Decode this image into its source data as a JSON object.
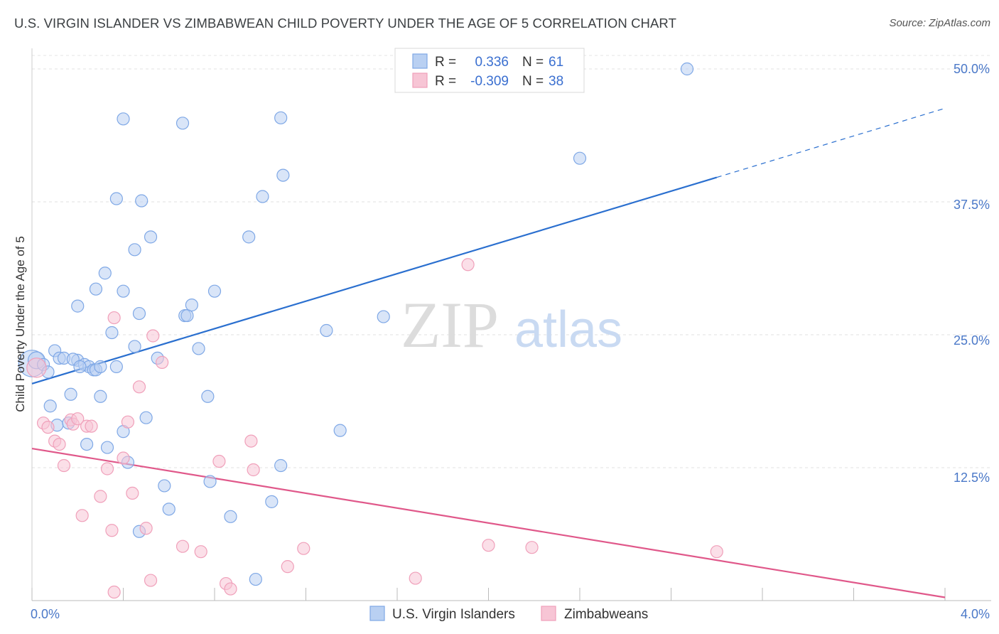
{
  "header": {
    "title": "U.S. VIRGIN ISLANDER VS ZIMBABWEAN CHILD POVERTY UNDER THE AGE OF 5 CORRELATION CHART",
    "source": "Source: ZipAtlas.com"
  },
  "chart_data": {
    "type": "scatter",
    "ylabel": "Child Poverty Under the Age of 5",
    "x_tick_labels": [
      "0.0%",
      "4.0%"
    ],
    "y_tick_labels": [
      "12.5%",
      "25.0%",
      "37.5%",
      "50.0%"
    ],
    "xlim": [
      0,
      4
    ],
    "ylim": [
      0,
      50
    ],
    "grid": true,
    "watermark": {
      "zip": "ZIP",
      "atlas": "atlas"
    },
    "legend": {
      "placement": "top-center",
      "rows": [
        {
          "r_label": "R = ",
          "r_value": "0.336",
          "n_label": "N = ",
          "n_value": "61"
        },
        {
          "r_label": "R = ",
          "r_value": "-0.309",
          "n_label": "N = ",
          "n_value": "38"
        }
      ]
    },
    "series": [
      {
        "name": "U.S. Virgin Islanders",
        "color": "#7fa8e6",
        "fill": "#b9d0f2",
        "line_color": "#2a6fcf",
        "trend": {
          "x0": 0.0,
          "y0": 20.4,
          "x1": 3.0,
          "y1": 39.8,
          "x_dash_end": 4.0,
          "y_dash_end": 46.3
        },
        "points": [
          [
            0.0,
            22.3,
            2.2
          ],
          [
            0.02,
            22.6,
            1.4
          ],
          [
            0.05,
            22.2,
            1
          ],
          [
            0.07,
            21.5,
            1
          ],
          [
            0.1,
            23.5,
            1
          ],
          [
            0.12,
            22.8,
            1
          ],
          [
            0.14,
            22.8,
            1
          ],
          [
            0.2,
            22.6,
            1
          ],
          [
            0.23,
            22.2,
            1
          ],
          [
            0.25,
            22.0,
            1
          ],
          [
            0.27,
            21.7,
            1
          ],
          [
            0.28,
            21.7,
            1
          ],
          [
            0.18,
            22.7,
            1
          ],
          [
            0.3,
            22.0,
            1
          ],
          [
            0.37,
            22.0,
            1
          ],
          [
            0.08,
            18.3,
            1
          ],
          [
            0.11,
            16.5,
            1
          ],
          [
            0.16,
            16.7,
            1
          ],
          [
            0.17,
            19.4,
            1
          ],
          [
            0.21,
            22.0,
            1
          ],
          [
            0.24,
            14.7,
            1
          ],
          [
            0.3,
            19.2,
            1
          ],
          [
            0.33,
            14.4,
            1
          ],
          [
            0.4,
            15.9,
            1
          ],
          [
            0.42,
            13.0,
            1
          ],
          [
            0.45,
            23.9,
            1
          ],
          [
            0.5,
            17.2,
            1
          ],
          [
            0.55,
            22.8,
            1
          ],
          [
            0.58,
            10.8,
            1
          ],
          [
            0.6,
            8.6,
            1
          ],
          [
            0.2,
            27.7,
            1
          ],
          [
            0.28,
            29.3,
            1
          ],
          [
            0.32,
            30.8,
            1
          ],
          [
            0.35,
            25.2,
            1
          ],
          [
            0.37,
            37.8,
            1
          ],
          [
            0.4,
            29.1,
            1
          ],
          [
            0.45,
            33.0,
            1
          ],
          [
            0.47,
            27.0,
            1
          ],
          [
            0.48,
            37.6,
            1
          ],
          [
            0.52,
            34.2,
            1
          ],
          [
            0.67,
            26.8,
            1
          ],
          [
            0.68,
            26.8,
            1
          ],
          [
            0.7,
            27.8,
            1
          ],
          [
            0.73,
            23.7,
            1
          ],
          [
            0.77,
            19.2,
            1
          ],
          [
            0.8,
            29.1,
            1
          ],
          [
            0.78,
            11.2,
            1
          ],
          [
            0.87,
            7.9,
            1
          ],
          [
            0.4,
            45.3,
            1
          ],
          [
            0.66,
            44.9,
            1
          ],
          [
            0.95,
            34.2,
            1
          ],
          [
            1.01,
            38.0,
            1
          ],
          [
            1.09,
            45.4,
            1
          ],
          [
            1.1,
            40.0,
            1
          ],
          [
            1.05,
            9.3,
            1
          ],
          [
            1.09,
            12.7,
            1
          ],
          [
            0.98,
            2.0,
            1
          ],
          [
            0.47,
            6.5,
            1
          ],
          [
            1.29,
            25.4,
            1
          ],
          [
            1.35,
            16.0,
            1
          ],
          [
            1.54,
            26.7,
            1
          ],
          [
            2.4,
            41.6,
            1
          ],
          [
            2.87,
            50.0,
            1
          ]
        ]
      },
      {
        "name": "Zimbabweans",
        "color": "#f0a0ba",
        "fill": "#f7c5d5",
        "line_color": "#e0588a",
        "trend": {
          "x0": 0.0,
          "y0": 14.3,
          "x1": 4.0,
          "y1": 0.3
        },
        "points": [
          [
            0.02,
            21.9,
            1.6
          ],
          [
            0.05,
            16.7,
            1
          ],
          [
            0.07,
            16.3,
            1
          ],
          [
            0.1,
            15.0,
            1
          ],
          [
            0.12,
            14.7,
            1
          ],
          [
            0.14,
            12.7,
            1
          ],
          [
            0.17,
            17.0,
            1
          ],
          [
            0.18,
            16.6,
            1
          ],
          [
            0.2,
            17.1,
            1
          ],
          [
            0.24,
            16.4,
            1
          ],
          [
            0.26,
            16.4,
            1
          ],
          [
            0.22,
            8.0,
            1
          ],
          [
            0.3,
            9.8,
            1
          ],
          [
            0.33,
            12.4,
            1
          ],
          [
            0.35,
            6.6,
            1
          ],
          [
            0.36,
            26.6,
            1
          ],
          [
            0.36,
            0.8,
            1
          ],
          [
            0.4,
            13.4,
            1
          ],
          [
            0.42,
            16.8,
            1
          ],
          [
            0.44,
            10.1,
            1
          ],
          [
            0.47,
            20.1,
            1
          ],
          [
            0.5,
            6.8,
            1
          ],
          [
            0.52,
            1.9,
            1
          ],
          [
            0.53,
            24.9,
            1
          ],
          [
            0.57,
            22.4,
            1
          ],
          [
            0.66,
            5.1,
            1
          ],
          [
            0.74,
            4.6,
            1
          ],
          [
            0.82,
            13.1,
            1
          ],
          [
            0.85,
            1.6,
            1
          ],
          [
            0.87,
            1.1,
            1
          ],
          [
            0.96,
            15.0,
            1
          ],
          [
            0.97,
            12.3,
            1
          ],
          [
            1.12,
            3.2,
            1
          ],
          [
            1.19,
            4.9,
            1
          ],
          [
            1.68,
            2.1,
            1
          ],
          [
            1.91,
            31.6,
            1
          ],
          [
            2.0,
            5.2,
            1
          ],
          [
            2.19,
            5.0,
            1
          ],
          [
            3.0,
            4.6,
            1
          ]
        ]
      }
    ]
  },
  "bottom_legend": [
    {
      "label": "U.S. Virgin Islanders"
    },
    {
      "label": "Zimbabweans"
    }
  ]
}
